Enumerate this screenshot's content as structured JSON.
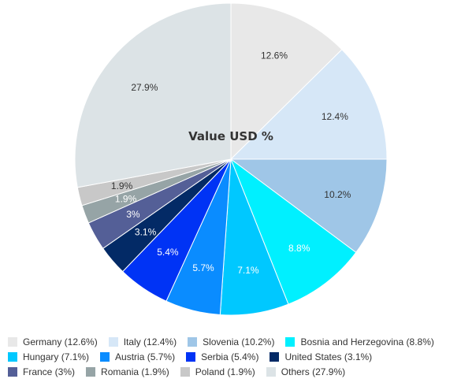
{
  "chart_data": {
    "type": "pie",
    "title": "Value USD %",
    "slices": [
      {
        "label": "Germany",
        "legend": "Germany (12.6%)",
        "value": 12.6,
        "value_label": "12.6%",
        "color": "#e8e8e8",
        "label_color": "#333333"
      },
      {
        "label": "Italy",
        "legend": "Italy (12.4%)",
        "value": 12.4,
        "value_label": "12.4%",
        "color": "#d6e7f7",
        "label_color": "#333333"
      },
      {
        "label": "Slovenia",
        "legend": "Slovenia (10.2%)",
        "value": 10.2,
        "value_label": "10.2%",
        "color": "#9fc6e7",
        "label_color": "#333333"
      },
      {
        "label": "Bosnia and Herzegovina",
        "legend": "Bosnia and Herzegovina (8.8%)",
        "value": 8.8,
        "value_label": "8.8%",
        "color": "#00f0ff",
        "label_color": "#ffffff"
      },
      {
        "label": "Hungary",
        "legend": "Hungary (7.1%)",
        "value": 7.1,
        "value_label": "7.1%",
        "color": "#00c8ff",
        "label_color": "#ffffff"
      },
      {
        "label": "Austria",
        "legend": "Austria (5.7%)",
        "value": 5.7,
        "value_label": "5.7%",
        "color": "#0a8cff",
        "label_color": "#ffffff"
      },
      {
        "label": "Serbia",
        "legend": "Serbia (5.4%)",
        "value": 5.4,
        "value_label": "5.4%",
        "color": "#0033f5",
        "label_color": "#ffffff"
      },
      {
        "label": "United States",
        "legend": "United States (3.1%)",
        "value": 3.1,
        "value_label": "3.1%",
        "color": "#032a66",
        "label_color": "#ffffff"
      },
      {
        "label": "France",
        "legend": "France (3%)",
        "value": 3.0,
        "value_label": "3%",
        "color": "#545f97",
        "label_color": "#ffffff"
      },
      {
        "label": "Romania",
        "legend": "Romania (1.9%)",
        "value": 1.9,
        "value_label": "1.9%",
        "color": "#96a4a6",
        "label_color": "#ffffff"
      },
      {
        "label": "Poland",
        "legend": "Poland (1.9%)",
        "value": 1.9,
        "value_label": "1.9%",
        "color": "#c8c8c8",
        "label_color": "#333333"
      },
      {
        "label": "Others",
        "legend": "Others (27.9%)",
        "value": 27.9,
        "value_label": "27.9%",
        "color": "#dce3e6",
        "label_color": "#333333"
      }
    ],
    "legend_position": "bottom"
  }
}
